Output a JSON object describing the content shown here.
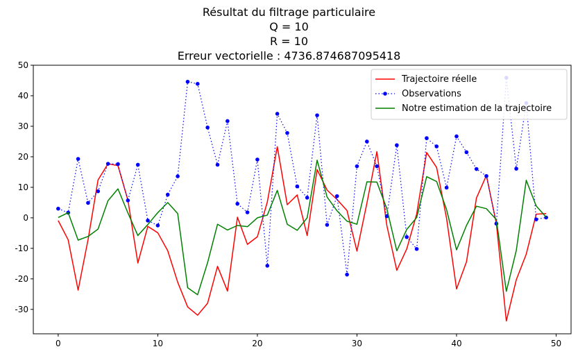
{
  "chart_data": {
    "type": "line",
    "title_lines": [
      "Résultat du filtrage particulaire",
      "Q = 10",
      "R = 10",
      "Erreur vectorielle : 4736.874687095418"
    ],
    "xlabel": "",
    "ylabel": "",
    "xlim": [
      -2.5,
      51.5
    ],
    "ylim": [
      -38,
      50
    ],
    "xticks": [
      0,
      10,
      20,
      30,
      40,
      50
    ],
    "yticks": [
      -30,
      -20,
      -10,
      0,
      10,
      20,
      30,
      40,
      50
    ],
    "grid": false,
    "legend_position": "top-right",
    "x": [
      0,
      1,
      2,
      3,
      4,
      5,
      6,
      7,
      8,
      9,
      10,
      11,
      12,
      13,
      14,
      15,
      16,
      17,
      18,
      19,
      20,
      21,
      22,
      23,
      24,
      25,
      26,
      27,
      28,
      29,
      30,
      31,
      32,
      33,
      34,
      35,
      36,
      37,
      38,
      39,
      40,
      41,
      42,
      43,
      44,
      45,
      46,
      47,
      48,
      49
    ],
    "series": [
      {
        "name": "Trajectoire réelle",
        "color": "#ff0000",
        "style": "solid",
        "values": [
          -0.9,
          -7.2,
          -23.7,
          -7.1,
          12.4,
          17.7,
          17.1,
          5.8,
          -14.8,
          -2.8,
          -4.9,
          -10.8,
          -21.1,
          -29.2,
          -31.9,
          -28.0,
          -15.9,
          -24.0,
          0.2,
          -8.7,
          -6.2,
          5.2,
          23.3,
          4.3,
          7.5,
          -5.8,
          15.8,
          9.1,
          6.0,
          2.4,
          -10.9,
          4.8,
          21.7,
          -2.5,
          -17.2,
          -10.2,
          1.3,
          21.4,
          16.5,
          -0.2,
          -23.3,
          -14.4,
          6.5,
          13.9,
          -1.9,
          -33.8,
          -20.3,
          -11.9,
          1.2,
          1.4
        ]
      },
      {
        "name": "Observations",
        "color": "#0000ff",
        "style": "dotted-markers",
        "values": [
          3.0,
          1.7,
          19.3,
          4.9,
          8.7,
          17.7,
          17.6,
          5.7,
          17.4,
          -0.9,
          -2.5,
          7.6,
          13.6,
          44.6,
          43.9,
          29.6,
          17.4,
          31.7,
          4.6,
          1.8,
          19.1,
          -15.7,
          34.1,
          27.8,
          10.3,
          6.6,
          33.6,
          -2.3,
          7.1,
          -18.6,
          16.9,
          25.0,
          16.9,
          0.5,
          23.8,
          -6.3,
          -10.2,
          26.1,
          23.4,
          9.9,
          26.7,
          21.5,
          16.0,
          13.7,
          -1.9,
          45.9,
          16.1,
          37.6,
          -0.5,
          0.1
        ]
      },
      {
        "name": "Notre estimation de la trajectoire",
        "color": "#008000",
        "style": "solid",
        "values": [
          0.1,
          1.7,
          -7.3,
          -6.1,
          -3.7,
          5.6,
          9.5,
          1.6,
          -5.8,
          -2.2,
          1.7,
          5.0,
          1.4,
          -22.9,
          -25.2,
          -14.7,
          -2.1,
          -4.0,
          -2.5,
          -2.9,
          0.0,
          0.9,
          9.0,
          -2.1,
          -4.1,
          0.0,
          18.9,
          6.8,
          2.3,
          -1.1,
          -2.1,
          11.8,
          11.7,
          3.0,
          -10.8,
          -3.8,
          0.1,
          13.5,
          11.9,
          2.7,
          -10.5,
          -2.5,
          3.8,
          3.0,
          -0.6,
          -24.1,
          -10.7,
          12.3,
          3.9,
          0.2
        ]
      }
    ]
  }
}
